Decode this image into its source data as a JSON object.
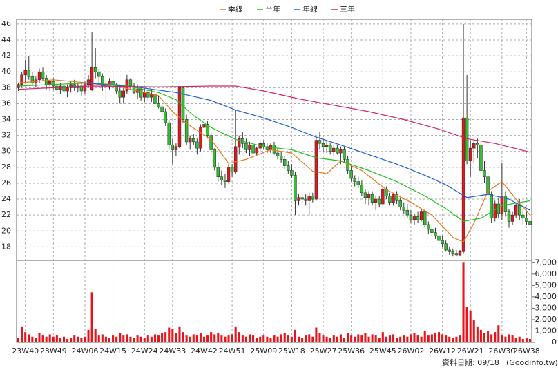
{
  "chart_data": {
    "type": "candlestick",
    "up_color": "#e8141c",
    "down_color": "#2fc22f",
    "volume_color": "#e8141c",
    "ylim": [
      16.3,
      46.6
    ],
    "yticks": [
      18,
      20,
      22,
      24,
      26,
      28,
      30,
      32,
      34,
      36,
      38,
      40,
      42,
      44,
      46
    ],
    "y2lim": [
      0,
      7200
    ],
    "y2ticks": [
      0,
      {
        "value": 1000,
        "label": "1,000"
      },
      {
        "value": 2000,
        "label": "2,000"
      },
      {
        "value": 3000,
        "label": "3,000"
      },
      {
        "value": 4000,
        "label": "4,000"
      },
      {
        "value": 5000,
        "label": "5,000"
      },
      {
        "value": 6000,
        "label": "6,000"
      },
      {
        "value": 7000,
        "label": "7,000"
      }
    ],
    "xlim": [
      -0.5,
      146.5
    ],
    "xticks": [
      {
        "value": 2,
        "label": "23W40"
      },
      {
        "value": 10,
        "label": "23W49"
      },
      {
        "value": 19,
        "label": "24W06"
      },
      {
        "value": 27,
        "label": "24W15"
      },
      {
        "value": 36,
        "label": "24W24"
      },
      {
        "value": 44,
        "label": "24W33"
      },
      {
        "value": 53,
        "label": "24W42"
      },
      {
        "value": 61,
        "label": "24W51"
      },
      {
        "value": 70,
        "label": "25W09"
      },
      {
        "value": 78,
        "label": "25W18"
      },
      {
        "value": 87,
        "label": "25W27"
      },
      {
        "value": 95,
        "label": "25W36"
      },
      {
        "value": 104,
        "label": "25W45"
      },
      {
        "value": 112,
        "label": "26W02"
      },
      {
        "value": 121,
        "label": "26W12"
      },
      {
        "value": 129,
        "label": "26W21"
      },
      {
        "value": 138,
        "label": "26W30"
      },
      {
        "value": 145,
        "label": "26W38"
      }
    ],
    "grid": true,
    "date_label": "資料日期: 09/18",
    "source": "(Goodinfo.tw)",
    "ohlc": [
      [
        38,
        38.6,
        37.6,
        38.4
      ],
      [
        38.4,
        40,
        38,
        39.6
      ],
      [
        39.6,
        41.5,
        38.5,
        40.2
      ],
      [
        40.2,
        42,
        39,
        39.4
      ],
      [
        39.4,
        40,
        38.2,
        38.6
      ],
      [
        38.6,
        39.4,
        38,
        39
      ],
      [
        39,
        40.4,
        38.6,
        40
      ],
      [
        40,
        40.6,
        38.8,
        39.2
      ],
      [
        39.2,
        39.6,
        37.8,
        38.4
      ],
      [
        38.4,
        39,
        37.6,
        38.8
      ],
      [
        38.8,
        39.2,
        37.8,
        38.2
      ],
      [
        38.2,
        38.8,
        37.4,
        37.8
      ],
      [
        37.8,
        38.6,
        37.2,
        38.2
      ],
      [
        38.2,
        38.6,
        37,
        37.6
      ],
      [
        37.6,
        38.4,
        36.8,
        38
      ],
      [
        38,
        38.8,
        37.4,
        38.4
      ],
      [
        38.4,
        39,
        37.6,
        38
      ],
      [
        38,
        38.6,
        37.4,
        38.2
      ],
      [
        38.2,
        38.6,
        37,
        37.6
      ],
      [
        37.6,
        38.8,
        37.2,
        38.4
      ],
      [
        38.4,
        39.6,
        38,
        39
      ],
      [
        37.8,
        45,
        37.6,
        40.6
      ],
      [
        40.6,
        43,
        39.2,
        40
      ],
      [
        40,
        40.4,
        38.6,
        39.4
      ],
      [
        39.4,
        39.8,
        37.6,
        38.2
      ],
      [
        38.2,
        39,
        36.4,
        38.4
      ],
      [
        38.4,
        39.2,
        37.8,
        38.8
      ],
      [
        38.8,
        39.6,
        38,
        38.4
      ],
      [
        38.4,
        38.6,
        37.2,
        37.6
      ],
      [
        37.6,
        38.4,
        36,
        36.8
      ],
      [
        36.8,
        38,
        36,
        37.6
      ],
      [
        37.6,
        39.6,
        37.2,
        39
      ],
      [
        39,
        39.2,
        37.8,
        38.2
      ],
      [
        38.2,
        38.6,
        37.2,
        37.4
      ],
      [
        37.4,
        38.4,
        36.6,
        37.8
      ],
      [
        37.8,
        38.2,
        36.4,
        36.8
      ],
      [
        36.8,
        38,
        36.2,
        37.4
      ],
      [
        37.4,
        37.8,
        36.4,
        36.8
      ],
      [
        36.8,
        37.8,
        36.2,
        37.2
      ],
      [
        37.2,
        37.8,
        35.6,
        36
      ],
      [
        36,
        37,
        35.4,
        35.6
      ],
      [
        35.6,
        36.4,
        34.4,
        35
      ],
      [
        35,
        35.4,
        33.2,
        33.6
      ],
      [
        33.6,
        34,
        30.2,
        30.8
      ],
      [
        30.8,
        31.6,
        28.4,
        30.2
      ],
      [
        30.2,
        31,
        29.4,
        30.6
      ],
      [
        30.6,
        38.2,
        30.4,
        38
      ],
      [
        38,
        38.2,
        33.6,
        34
      ],
      [
        34,
        34.6,
        30.8,
        31.2
      ],
      [
        31.2,
        32,
        30.2,
        31.6
      ],
      [
        31.6,
        32.2,
        30.8,
        31.2
      ],
      [
        31.2,
        31.6,
        29.6,
        30.4
      ],
      [
        30.4,
        33.4,
        30,
        33
      ],
      [
        33,
        34,
        32.4,
        33.4
      ],
      [
        33.4,
        33.8,
        31.6,
        32
      ],
      [
        32,
        32.4,
        29.6,
        30.2
      ],
      [
        30.2,
        30.4,
        27.6,
        28
      ],
      [
        28,
        28.6,
        26.2,
        26.8
      ],
      [
        26.8,
        27.6,
        25.8,
        26.4
      ],
      [
        26.4,
        27.2,
        25.4,
        26.2
      ],
      [
        26.2,
        28.4,
        26,
        28
      ],
      [
        28,
        28.4,
        26.8,
        27.4
      ],
      [
        27.4,
        35.2,
        27.2,
        30.6
      ],
      [
        30.6,
        32,
        29.6,
        31.6
      ],
      [
        31.6,
        32.4,
        30.4,
        31
      ],
      [
        31,
        31.6,
        29.8,
        30.2
      ],
      [
        30.2,
        31.2,
        29.4,
        30.8
      ],
      [
        30.8,
        31.2,
        29.6,
        29.8
      ],
      [
        29.8,
        30.6,
        29.4,
        30.4
      ],
      [
        30.4,
        31.4,
        30,
        31
      ],
      [
        31,
        31.4,
        30.2,
        30.6
      ],
      [
        30.6,
        31,
        29.8,
        30.2
      ],
      [
        30.2,
        31,
        29.8,
        30.8
      ],
      [
        30.8,
        31.2,
        29.6,
        29.8
      ],
      [
        29.8,
        30.4,
        29,
        29.4
      ],
      [
        29.4,
        30,
        28.6,
        29
      ],
      [
        29,
        29.4,
        27.8,
        28.2
      ],
      [
        28.2,
        28.8,
        27.2,
        27.6
      ],
      [
        27.6,
        28.4,
        26.6,
        27
      ],
      [
        27,
        27.4,
        22,
        23.8
      ],
      [
        23.8,
        24.6,
        23.2,
        24.2
      ],
      [
        24.2,
        24.8,
        23.6,
        24
      ],
      [
        24,
        24.6,
        23.2,
        23.8
      ],
      [
        23.8,
        24.8,
        22,
        24.4
      ],
      [
        24.4,
        24.8,
        23.6,
        24
      ],
      [
        24,
        31.8,
        23.8,
        31.4
      ],
      [
        31.4,
        32.4,
        30.2,
        31
      ],
      [
        31,
        31.6,
        30,
        30.6
      ],
      [
        30.6,
        31.4,
        29.8,
        30.8
      ],
      [
        30.8,
        31,
        29.6,
        30
      ],
      [
        30,
        30.8,
        29.4,
        30.4
      ],
      [
        30.4,
        30.8,
        29.6,
        29.8
      ],
      [
        29.8,
        30.6,
        28.4,
        30.2
      ],
      [
        30.2,
        30.6,
        28.6,
        29
      ],
      [
        29,
        29.4,
        27.2,
        27.6
      ],
      [
        27.6,
        28.2,
        26.2,
        26.6
      ],
      [
        26.6,
        27,
        25.6,
        26.2
      ],
      [
        26.2,
        26.8,
        25.4,
        25.8
      ],
      [
        25.8,
        26.4,
        24.4,
        24.8
      ],
      [
        24.8,
        25.2,
        23.4,
        24.2
      ],
      [
        24.2,
        25,
        23.2,
        24.6
      ],
      [
        24.6,
        25,
        23.2,
        23.6
      ],
      [
        23.6,
        24.4,
        22.6,
        24
      ],
      [
        24,
        24.4,
        23,
        23.4
      ],
      [
        23.4,
        25.6,
        23.2,
        25.2
      ],
      [
        25.2,
        25.6,
        24,
        24.4
      ],
      [
        24.4,
        24.8,
        23.2,
        23.6
      ],
      [
        23.6,
        24.8,
        23.2,
        24.6
      ],
      [
        24.6,
        25,
        23.4,
        23.8
      ],
      [
        23.8,
        24.2,
        22.6,
        23
      ],
      [
        23,
        23.6,
        22.2,
        22.6
      ],
      [
        22.6,
        23.4,
        21.6,
        22
      ],
      [
        22,
        22.6,
        21,
        21.4
      ],
      [
        21.4,
        22.2,
        20.8,
        21.8
      ],
      [
        21.8,
        22.4,
        21,
        21.4
      ],
      [
        21.4,
        22.8,
        21.2,
        22.4
      ],
      [
        22.4,
        22.8,
        20.4,
        20.8
      ],
      [
        20.8,
        21.2,
        19.6,
        20.2
      ],
      [
        20.2,
        20.6,
        19.4,
        19.8
      ],
      [
        19.8,
        20.4,
        19,
        19.4
      ],
      [
        19.4,
        19.8,
        18.4,
        18.8
      ],
      [
        18.8,
        19.4,
        18,
        18.4
      ],
      [
        18.4,
        18.8,
        17.4,
        17.6
      ],
      [
        17.6,
        18,
        17,
        17.4
      ],
      [
        17.4,
        17.8,
        16.8,
        17.2
      ],
      [
        17.2,
        17.6,
        16.8,
        17
      ],
      [
        17,
        17.6,
        16.8,
        17.4
      ],
      [
        17.4,
        46,
        17.2,
        34.2
      ],
      [
        34.2,
        39.6,
        28.4,
        28.8
      ],
      [
        28.8,
        31.4,
        26.8,
        30.4
      ],
      [
        30.4,
        31.4,
        28.6,
        31
      ],
      [
        31,
        31.6,
        29.2,
        30.8
      ],
      [
        30.8,
        31.2,
        27.2,
        27.6
      ],
      [
        27.6,
        28.8,
        26,
        26.8
      ],
      [
        26.8,
        27.4,
        24.2,
        24.6
      ],
      [
        24.6,
        25,
        21,
        21.6
      ],
      [
        21.6,
        23.8,
        21.2,
        23.4
      ],
      [
        23.4,
        24.2,
        21.6,
        22.2
      ],
      [
        22.2,
        28.6,
        21.4,
        24.4
      ],
      [
        24.4,
        25,
        21.8,
        22.4
      ],
      [
        22.4,
        22.8,
        20.4,
        21.2
      ],
      [
        21.2,
        22.4,
        20.8,
        22
      ],
      [
        22,
        23.6,
        21.6,
        23.2
      ],
      [
        23.2,
        24,
        21.4,
        22
      ],
      [
        22,
        22.8,
        20.8,
        21.6
      ],
      [
        21.6,
        22.4,
        20.8,
        21.2
      ],
      [
        21.2,
        21.6,
        20.4,
        20.8
      ]
    ],
    "volume": [
      400,
      1400,
      900,
      700,
      500,
      400,
      800,
      600,
      500,
      700,
      500,
      600,
      400,
      500,
      300,
      400,
      600,
      500,
      400,
      500,
      1100,
      4400,
      1200,
      600,
      700,
      500,
      400,
      600,
      500,
      800,
      600,
      700,
      500,
      400,
      600,
      500,
      400,
      600,
      500,
      700,
      600,
      800,
      900,
      1300,
      1200,
      800,
      1400,
      900,
      600,
      500,
      700,
      600,
      800,
      500,
      600,
      900,
      700,
      800,
      600,
      500,
      600,
      700,
      1400,
      900,
      600,
      500,
      700,
      600,
      400,
      500,
      600,
      500,
      400,
      600,
      500,
      700,
      800,
      600,
      500,
      1100,
      500,
      400,
      600,
      700,
      500,
      1300,
      800,
      600,
      500,
      400,
      600,
      500,
      700,
      400,
      800,
      600,
      500,
      700,
      600,
      800,
      500,
      700,
      600,
      400,
      900,
      500,
      600,
      700,
      400,
      500,
      600,
      500,
      700,
      800,
      600,
      500,
      1000,
      600,
      700,
      800,
      900,
      700,
      600,
      500,
      400,
      500,
      600,
      7000,
      3100,
      2800,
      2000,
      1400,
      1100,
      800,
      1000,
      700,
      900,
      1500,
      600,
      500,
      700,
      600,
      400,
      500,
      300,
      400,
      300
    ],
    "series": [
      {
        "name": "季線",
        "color": "#e8771c",
        "x": [
          0,
          10,
          20,
          30,
          40,
          44,
          48,
          55,
          60,
          65,
          72,
          78,
          84,
          88,
          92,
          98,
          105,
          112,
          118,
          124,
          127,
          130,
          134,
          138,
          142,
          146
        ],
        "values": [
          38.6,
          39,
          38.6,
          38,
          37,
          35,
          33.5,
          31.5,
          28.5,
          29,
          30.2,
          29.8,
          27.5,
          27.2,
          28.8,
          27.6,
          25.2,
          23.6,
          22,
          19.2,
          18.6,
          21,
          25,
          26.2,
          24,
          22
        ]
      },
      {
        "name": "半年",
        "color": "#22c022",
        "x": [
          0,
          10,
          20,
          30,
          40,
          45,
          50,
          55,
          62,
          70,
          78,
          85,
          92,
          100,
          108,
          116,
          122,
          127,
          132,
          138,
          146
        ],
        "values": [
          38.2,
          38.4,
          38.6,
          38.3,
          37.4,
          36.5,
          34.5,
          33,
          31.5,
          30.6,
          30.2,
          29.2,
          28.8,
          27.6,
          26.2,
          24.4,
          22.8,
          21.2,
          21.6,
          23.2,
          23.8
        ]
      },
      {
        "name": "年線",
        "color": "#1f5fd0",
        "x": [
          18,
          25,
          35,
          45,
          55,
          62,
          70,
          78,
          85,
          92,
          100,
          108,
          116,
          122,
          128,
          134,
          140,
          146
        ],
        "values": [
          38.6,
          38.4,
          38,
          37.4,
          36.4,
          35.2,
          34.2,
          33,
          31.8,
          30.8,
          29.6,
          28.4,
          27,
          25.8,
          24.2,
          24.6,
          24,
          22.6
        ]
      },
      {
        "name": "三年",
        "color": "#d8206a",
        "x": [
          0,
          20,
          40,
          55,
          62,
          70,
          80,
          90,
          100,
          110,
          120,
          128,
          136,
          146
        ],
        "values": [
          37.8,
          38.2,
          38.1,
          38.2,
          38.2,
          37.6,
          36.6,
          35.8,
          35,
          34,
          32.8,
          31.6,
          31,
          29.9
        ]
      }
    ]
  }
}
